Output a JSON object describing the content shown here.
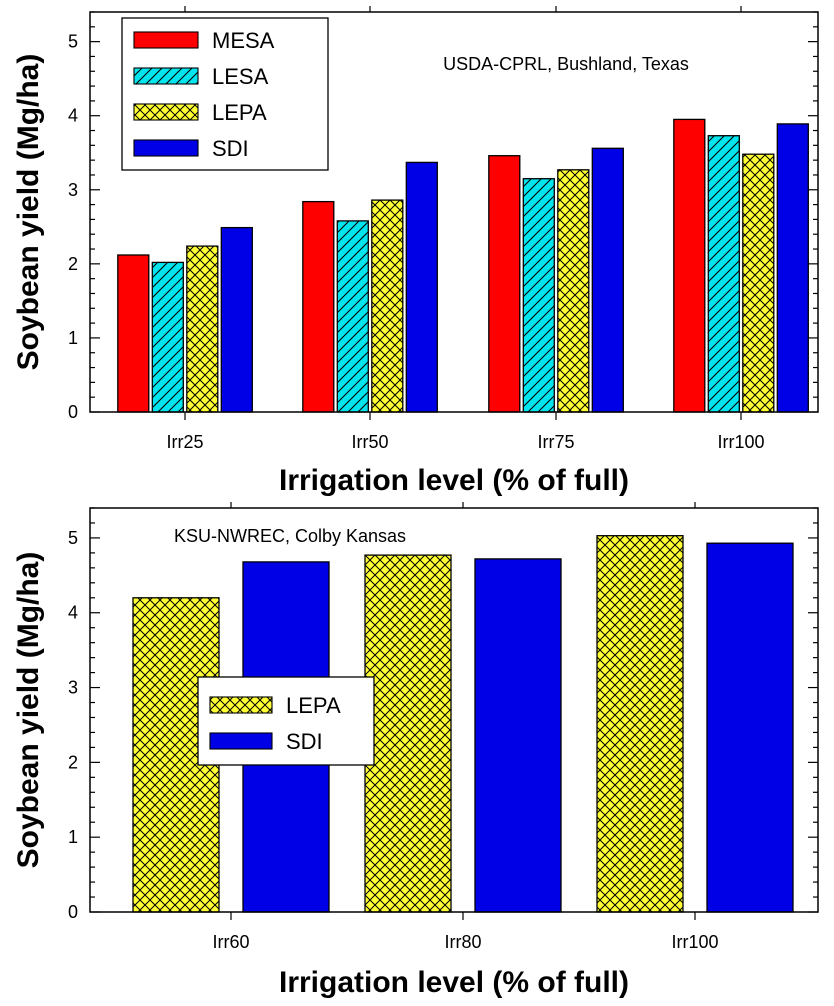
{
  "chart_data": [
    {
      "type": "bar",
      "annotation": "USDA-CPRL, Bushland, Texas",
      "xlabel": "Irrigation level (% of full)",
      "ylabel": "Soybean yield (Mg/ha)",
      "ylim": [
        0,
        5.4
      ],
      "yticks": [
        0,
        1,
        2,
        3,
        4,
        5
      ],
      "y_minor_tick_step": 0.2,
      "categories": [
        "Irr25",
        "Irr50",
        "Irr75",
        "Irr100"
      ],
      "legend_position": "top-left",
      "series": [
        {
          "name": "MESA",
          "values": [
            2.12,
            2.84,
            3.46,
            3.95
          ],
          "color": "#ff0000",
          "pattern": "solid"
        },
        {
          "name": "LESA",
          "values": [
            2.02,
            2.58,
            3.15,
            3.73
          ],
          "color": "#00e5ee",
          "pattern": "diagonal"
        },
        {
          "name": "LEPA",
          "values": [
            2.24,
            2.86,
            3.27,
            3.48
          ],
          "color": "#ffff33",
          "pattern": "crosshatch"
        },
        {
          "name": "SDI",
          "values": [
            2.49,
            3.37,
            3.56,
            3.89
          ],
          "color": "#0000e6",
          "pattern": "solid"
        }
      ]
    },
    {
      "type": "bar",
      "annotation": "KSU-NWREC, Colby Kansas",
      "xlabel": "Irrigation level (% of full)",
      "ylabel": "Soybean yield (Mg/ha)",
      "ylim": [
        0,
        5.4
      ],
      "yticks": [
        0,
        1,
        2,
        3,
        4,
        5
      ],
      "y_minor_tick_step": 0.2,
      "categories": [
        "Irr60",
        "Irr80",
        "Irr100"
      ],
      "legend_position": "center-left",
      "series": [
        {
          "name": "LEPA",
          "values": [
            4.2,
            4.77,
            5.03
          ],
          "color": "#ffff33",
          "pattern": "crosshatch"
        },
        {
          "name": "SDI",
          "values": [
            4.68,
            4.72,
            4.93
          ],
          "color": "#0000e6",
          "pattern": "solid"
        }
      ]
    }
  ]
}
